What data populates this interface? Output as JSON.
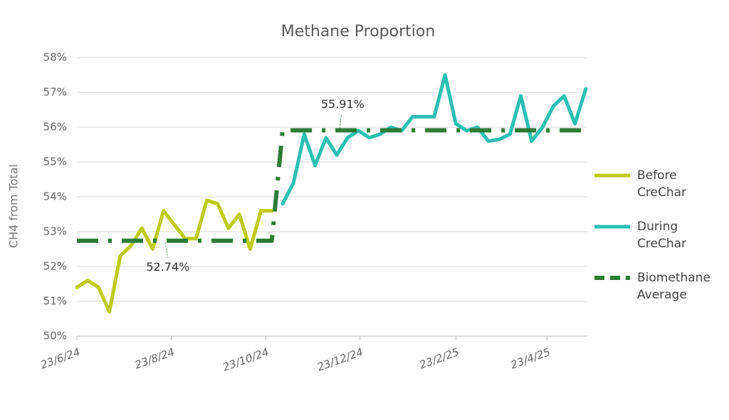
{
  "chart_data": {
    "type": "line",
    "title": "Methane Proportion",
    "y_label": "CH4 from Total",
    "xlim": [
      "2024-06-23",
      "2025-05-19"
    ],
    "xticks": [
      {
        "value": "2024-06-23",
        "label": "23/6/24"
      },
      {
        "value": "2024-08-23",
        "label": "23/8/24"
      },
      {
        "value": "2024-10-23",
        "label": "23/10/24"
      },
      {
        "value": "2024-12-23",
        "label": "23/12/24"
      },
      {
        "value": "2025-02-23",
        "label": "23/2/25"
      },
      {
        "value": "2025-04-23",
        "label": "23/4/25"
      }
    ],
    "ylim": [
      50,
      58
    ],
    "yticks": [
      {
        "value": 50,
        "label": "50%"
      },
      {
        "value": 51,
        "label": "51%"
      },
      {
        "value": 52,
        "label": "52%"
      },
      {
        "value": 53,
        "label": "53%"
      },
      {
        "value": 54,
        "label": "54%"
      },
      {
        "value": 55,
        "label": "55%"
      },
      {
        "value": 56,
        "label": "56%"
      },
      {
        "value": 57,
        "label": "57%"
      },
      {
        "value": 58,
        "label": "58%"
      }
    ],
    "grid": true,
    "legend": "right",
    "series": [
      {
        "name": "Before CreChar",
        "color": "#bccb17",
        "style": "solid",
        "x": [
          "2024-06-23",
          "2024-06-30",
          "2024-07-07",
          "2024-07-14",
          "2024-07-21",
          "2024-07-28",
          "2024-08-04",
          "2024-08-11",
          "2024-08-18",
          "2024-08-25",
          "2024-09-01",
          "2024-09-08",
          "2024-09-15",
          "2024-09-22",
          "2024-09-29",
          "2024-10-06",
          "2024-10-13",
          "2024-10-20",
          "2024-10-27"
        ],
        "values": [
          51.4,
          51.6,
          51.4,
          50.7,
          52.3,
          52.6,
          53.1,
          52.5,
          53.6,
          53.2,
          52.8,
          52.8,
          53.9,
          53.8,
          53.1,
          53.5,
          52.5,
          53.6,
          53.6
        ]
      },
      {
        "name": "During CreChar",
        "color": "#2bbfb1",
        "style": "solid",
        "x": [
          "2024-11-03",
          "2024-11-10",
          "2024-11-17",
          "2024-11-24",
          "2024-12-01",
          "2024-12-08",
          "2024-12-15",
          "2024-12-22",
          "2024-12-29",
          "2025-01-05",
          "2025-01-12",
          "2025-01-19",
          "2025-01-26",
          "2025-02-02",
          "2025-02-09",
          "2025-02-16",
          "2025-02-23",
          "2025-03-02",
          "2025-03-09",
          "2025-03-16",
          "2025-03-23",
          "2025-03-30",
          "2025-04-06",
          "2025-04-13",
          "2025-04-20",
          "2025-04-27",
          "2025-05-04",
          "2025-05-11",
          "2025-05-18"
        ],
        "values": [
          53.8,
          54.4,
          55.8,
          54.9,
          55.7,
          55.2,
          55.7,
          55.9,
          55.7,
          55.8,
          56.0,
          55.9,
          56.3,
          56.3,
          56.3,
          57.5,
          56.1,
          55.9,
          56.0,
          55.6,
          55.65,
          55.8,
          56.9,
          55.6,
          56.0,
          56.6,
          56.9,
          56.1,
          57.1
        ]
      },
      {
        "name": "Biomethane Average",
        "color": "#2e7b36",
        "style": "dash-dot",
        "x": [
          "2024-06-23",
          "2024-10-27",
          "2024-11-03",
          "2025-05-18"
        ],
        "values": [
          52.74,
          52.74,
          55.91,
          55.91
        ]
      }
    ],
    "annotations": [
      {
        "text": "52.74%",
        "x": "2024-08-19",
        "value": 52.74
      },
      {
        "text": "55.91%",
        "x": "2024-12-10",
        "value": 55.91
      }
    ]
  }
}
